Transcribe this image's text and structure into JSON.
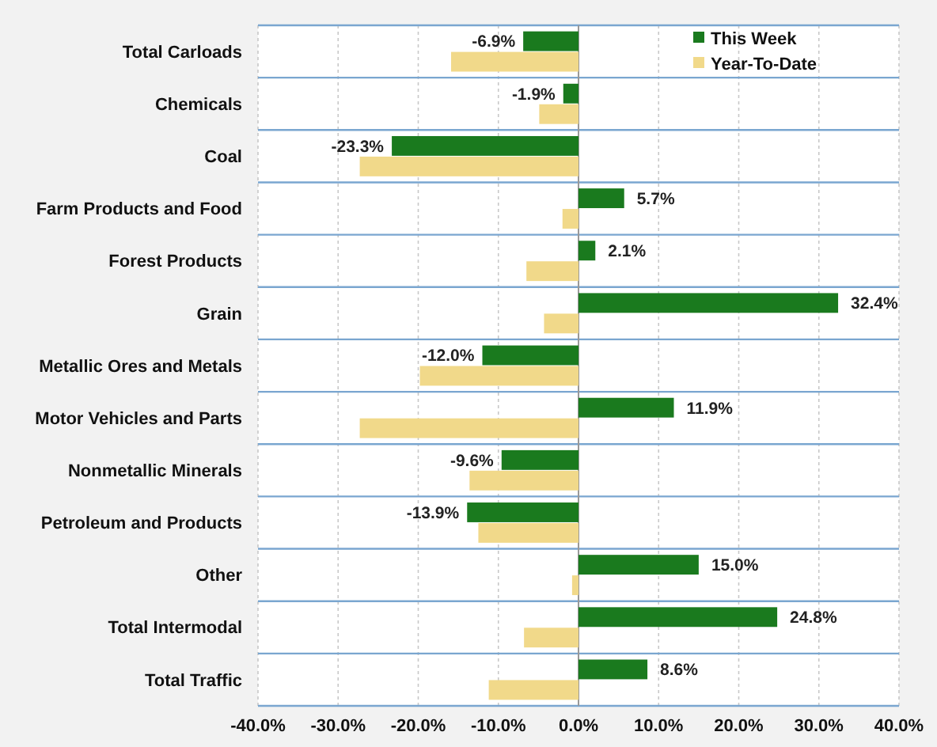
{
  "chart_data": {
    "type": "bar",
    "orientation": "horizontal",
    "categories": [
      "Total Carloads",
      "Chemicals",
      "Coal",
      "Farm Products and Food",
      "Forest Products",
      "Grain",
      "Metallic Ores and Metals",
      "Motor Vehicles and Parts",
      "Nonmetallic Minerals",
      "Petroleum and Products",
      "Other",
      "Total Intermodal",
      "Total Traffic"
    ],
    "series": [
      {
        "name": "This Week",
        "color": "#1a7a1e",
        "values": [
          -6.9,
          -1.9,
          -23.3,
          5.7,
          2.1,
          32.4,
          -12.0,
          11.9,
          -9.6,
          -13.9,
          15.0,
          24.8,
          8.6
        ],
        "value_labels": [
          "-6.9%",
          "-1.9%",
          "-23.3%",
          "5.7%",
          "2.1%",
          "32.4%",
          "-12.0%",
          "11.9%",
          "-9.6%",
          "-13.9%",
          "15.0%",
          "24.8%",
          "8.6%"
        ]
      },
      {
        "name": "Year-To-Date",
        "color": "#f1d98a",
        "values": [
          -15.9,
          -4.9,
          -27.3,
          -2.0,
          -6.5,
          -4.3,
          -19.8,
          -27.3,
          -13.6,
          -12.5,
          -0.8,
          -6.8,
          -11.2
        ]
      }
    ],
    "xlim": [
      -40,
      40
    ],
    "xticks": [
      {
        "value": -40,
        "label": "-40.0%"
      },
      {
        "value": -30,
        "label": "-30.0%"
      },
      {
        "value": -20,
        "label": "-20.0%"
      },
      {
        "value": -10,
        "label": "-10.0%"
      },
      {
        "value": 0,
        "label": "0.0%"
      },
      {
        "value": 10,
        "label": "10.0%"
      },
      {
        "value": 20,
        "label": "20.0%"
      },
      {
        "value": 30,
        "label": "30.0%"
      },
      {
        "value": 40,
        "label": "40.0%"
      }
    ],
    "grid": true,
    "legend": "top right"
  }
}
